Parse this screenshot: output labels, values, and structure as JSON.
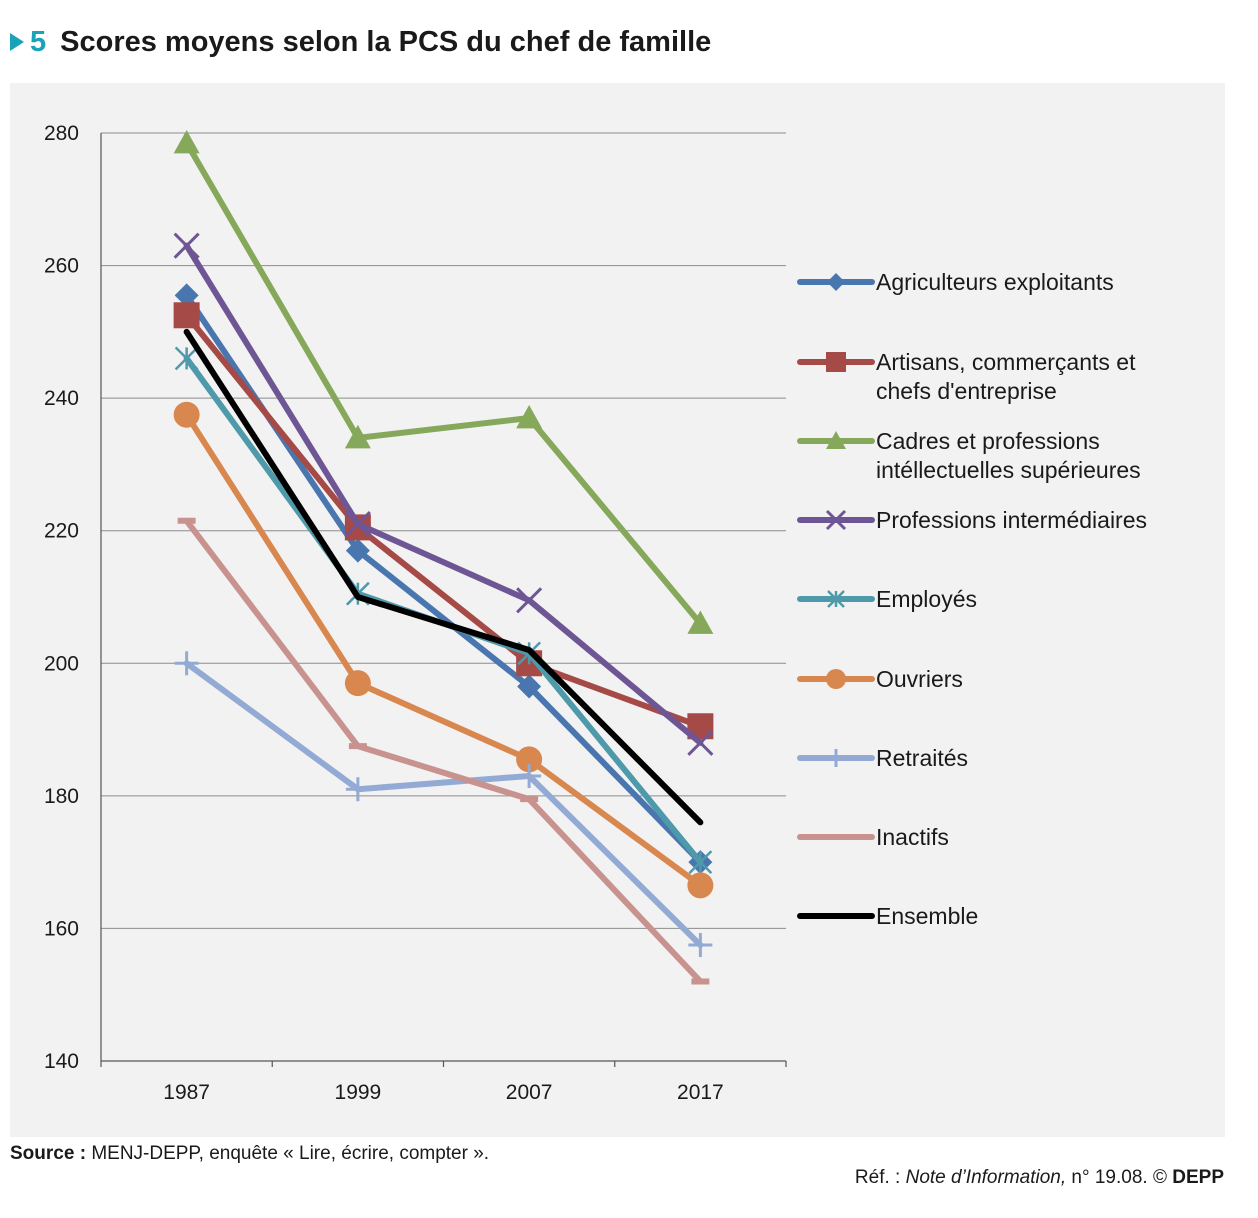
{
  "header": {
    "figure_number": "5",
    "title": "Scores moyens selon la PCS du chef de famille"
  },
  "footer": {
    "source_label": "Source :",
    "source_text": "MENJ-DEPP, enquête « Lire, écrire, compter ».",
    "ref_prefix": "Réf. : ",
    "ref_publication": "Note d’Information,",
    "ref_number": " n° 19.08. © ",
    "ref_org": "DEPP"
  },
  "colors": {
    "accent": "#1aa2b8",
    "panel_background": "#f2f2f2",
    "gridline": "#8c8c8c"
  },
  "chart_data": {
    "type": "line",
    "categories": [
      "1987",
      "1999",
      "2007",
      "2017"
    ],
    "yticks": [
      140,
      160,
      180,
      200,
      220,
      240,
      260,
      280
    ],
    "ylim": [
      140,
      280
    ],
    "grid": true,
    "legend_position": "right",
    "series": [
      {
        "name": "Agriculteurs exploitants",
        "values": [
          255.5,
          217,
          196.5,
          170
        ],
        "color": "#4a76b0",
        "marker": "diamond"
      },
      {
        "name": "Artisans, commerçants et chefs d'entreprise",
        "values": [
          252.5,
          220.5,
          200,
          190.5
        ],
        "color": "#a54a47",
        "marker": "square"
      },
      {
        "name": "Cadres et professions intéllectuelles supérieures",
        "values": [
          278.5,
          234,
          237,
          206
        ],
        "color": "#86a85a",
        "marker": "triangle"
      },
      {
        "name": "Professions intermédiaires",
        "values": [
          263,
          221,
          209.5,
          188
        ],
        "color": "#6e5694",
        "marker": "x"
      },
      {
        "name": "Employés",
        "values": [
          246,
          210.5,
          201.5,
          170
        ],
        "color": "#4f9aaa",
        "marker": "star"
      },
      {
        "name": "Ouvriers",
        "values": [
          237.5,
          197,
          185.5,
          166.5
        ],
        "color": "#d8874f",
        "marker": "circle"
      },
      {
        "name": "Retraités",
        "values": [
          200,
          181,
          183,
          157.5
        ],
        "color": "#93aad4",
        "marker": "plus"
      },
      {
        "name": "Inactifs",
        "values": [
          221.5,
          187.5,
          179.5,
          152
        ],
        "color": "#c8928f",
        "marker": "dash"
      },
      {
        "name": "Ensemble",
        "values": [
          250,
          210,
          202,
          176
        ],
        "color": "#000000",
        "marker": "none"
      }
    ]
  }
}
